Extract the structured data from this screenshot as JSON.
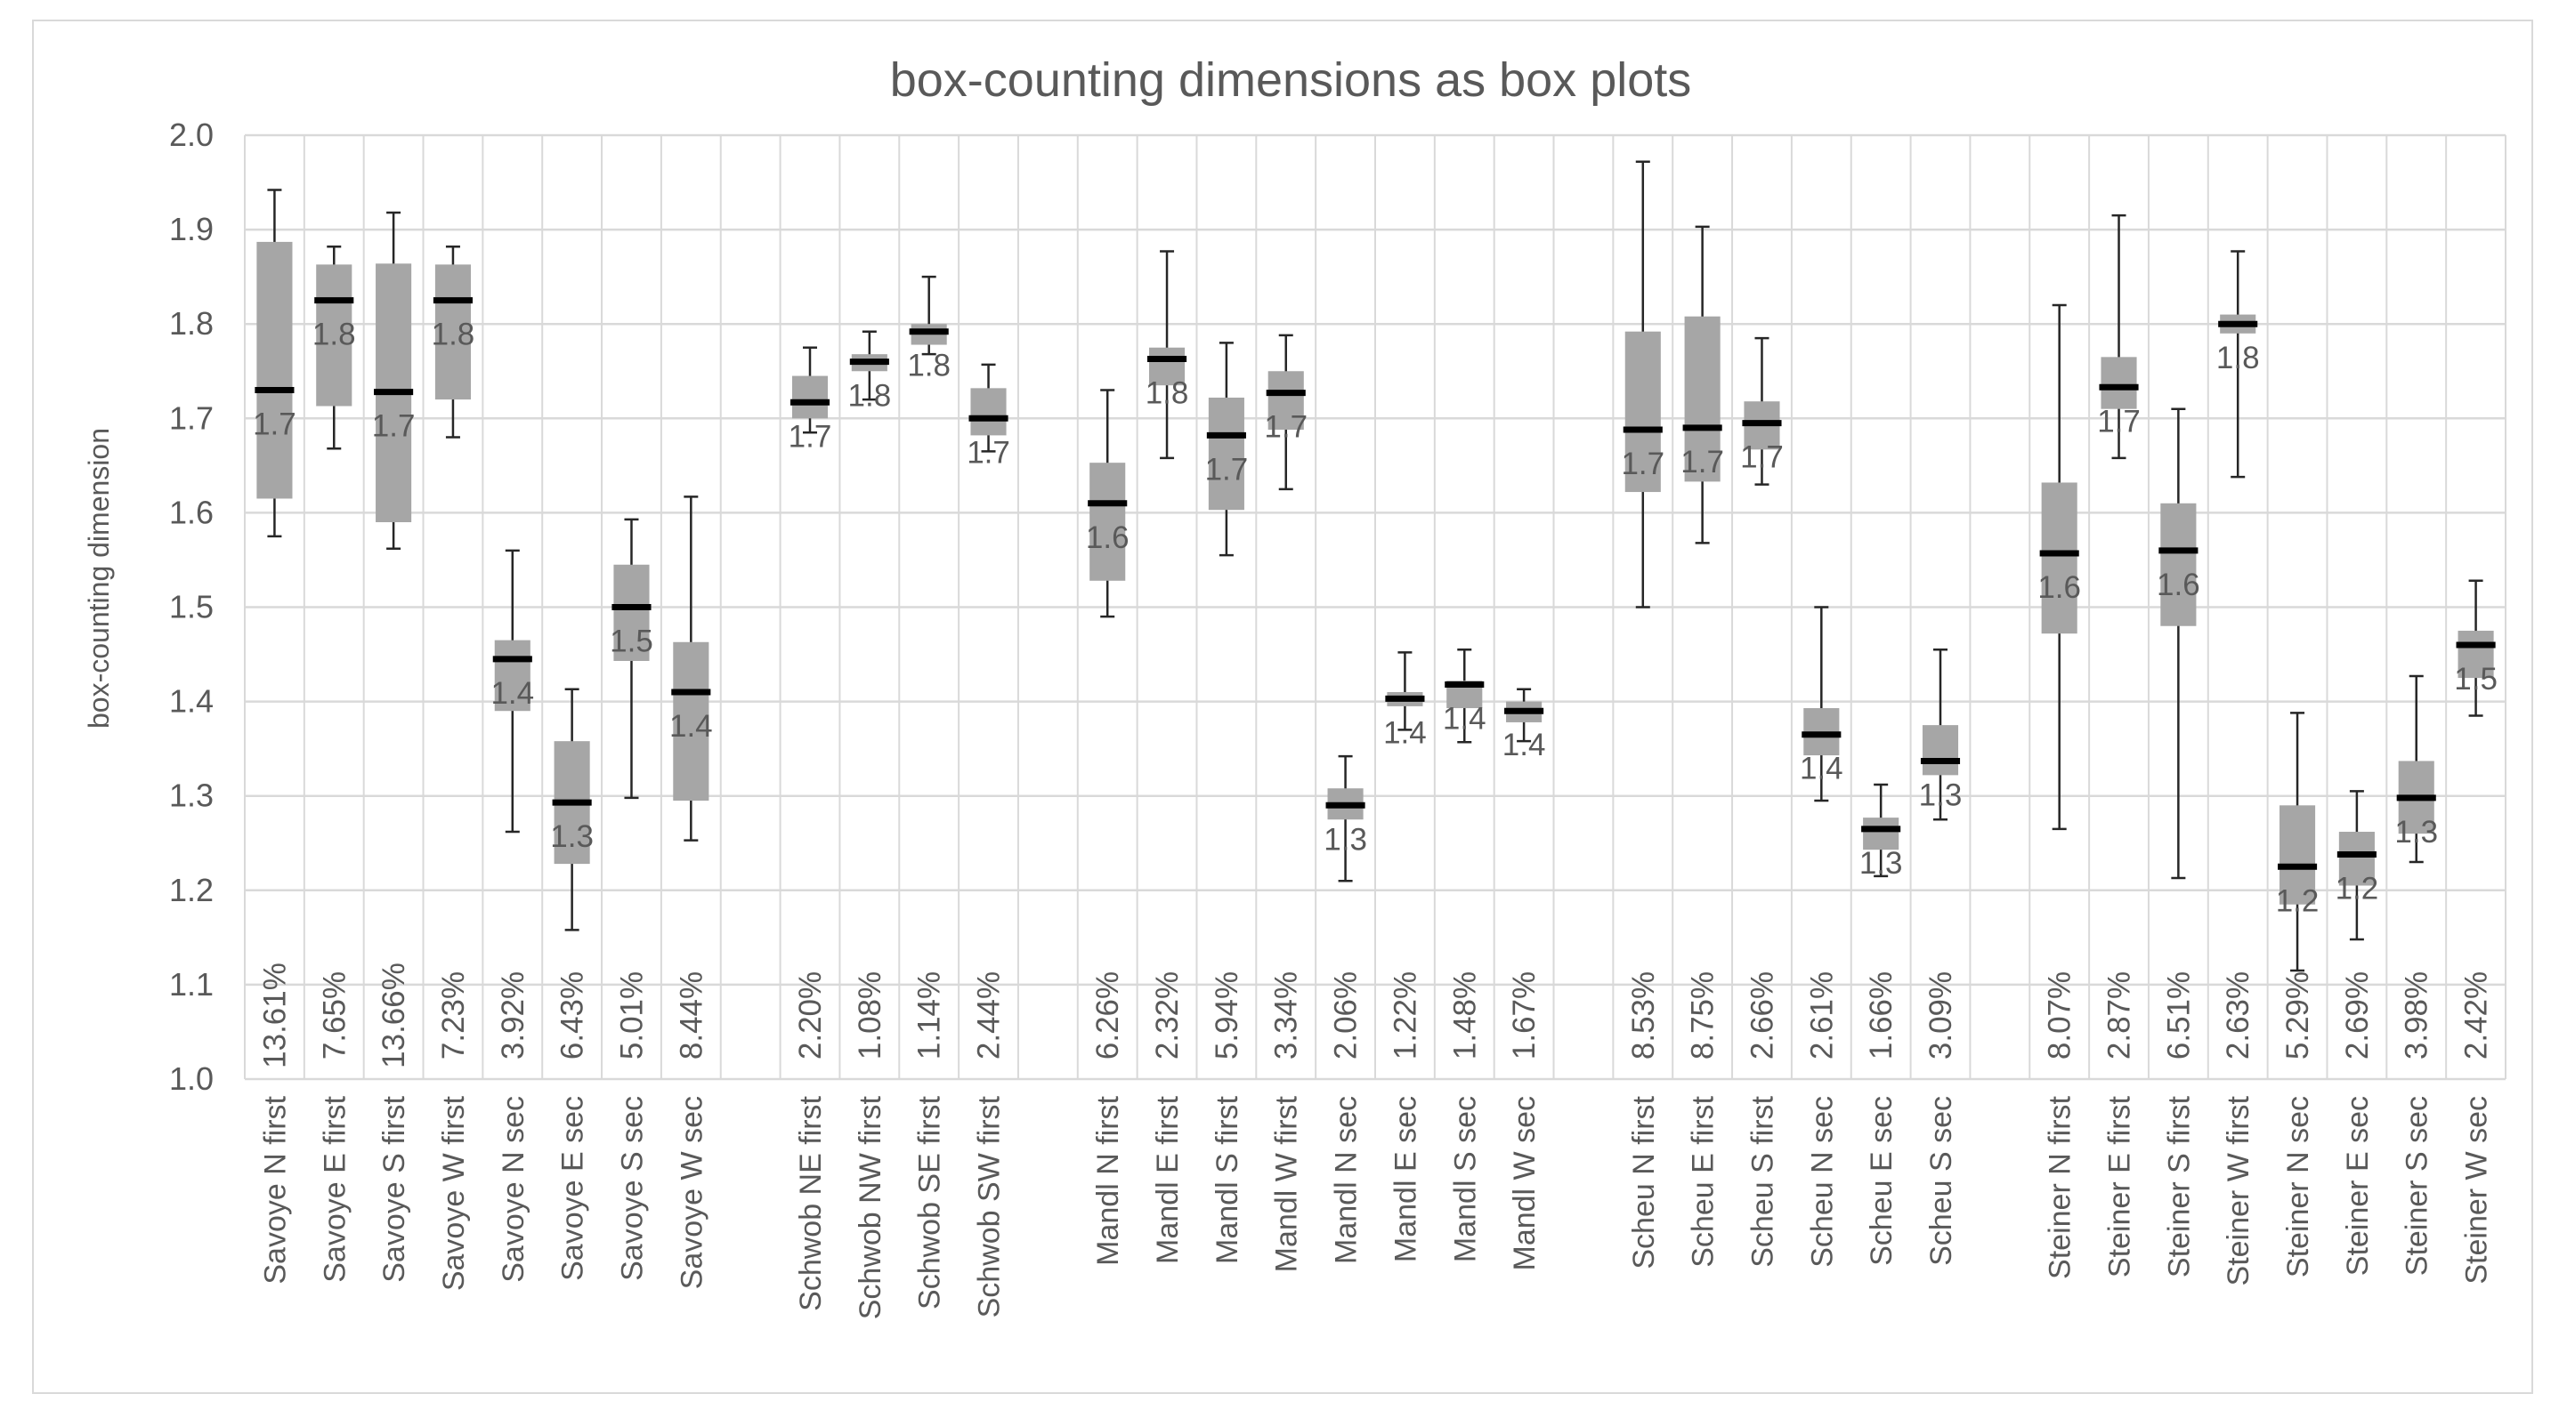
{
  "chart_data": {
    "type": "boxplot",
    "title": "box-counting dimensions as box plots",
    "ylabel": "box-counting dimension",
    "xlabel": "",
    "ylim": [
      1.0,
      2.0
    ],
    "yticks": [
      "1.0",
      "1.1",
      "1.2",
      "1.3",
      "1.4",
      "1.5",
      "1.6",
      "1.7",
      "1.8",
      "1.9",
      "2.0"
    ],
    "grid": true,
    "groups": [
      {
        "name": "Savoye",
        "items": [
          {
            "label": "Savoye N first",
            "pct": "13.61%",
            "median_label": "1.7",
            "min": 1.575,
            "q1": 1.615,
            "median": 1.73,
            "q3": 1.887,
            "max": 1.942
          },
          {
            "label": "Savoye E first",
            "pct": "7.65%",
            "median_label": "1.8",
            "min": 1.668,
            "q1": 1.713,
            "median": 1.825,
            "q3": 1.863,
            "max": 1.882
          },
          {
            "label": "Savoye S first",
            "pct": "13.66%",
            "median_label": "1.7",
            "min": 1.562,
            "q1": 1.59,
            "median": 1.728,
            "q3": 1.864,
            "max": 1.918
          },
          {
            "label": "Savoye W first",
            "pct": "7.23%",
            "median_label": "1.8",
            "min": 1.68,
            "q1": 1.72,
            "median": 1.825,
            "q3": 1.863,
            "max": 1.882
          },
          {
            "label": "Savoye N sec",
            "pct": "3.92%",
            "median_label": "1.4",
            "min": 1.262,
            "q1": 1.39,
            "median": 1.445,
            "q3": 1.465,
            "max": 1.56
          },
          {
            "label": "Savoye E sec",
            "pct": "6.43%",
            "median_label": "1.3",
            "min": 1.158,
            "q1": 1.228,
            "median": 1.293,
            "q3": 1.358,
            "max": 1.413
          },
          {
            "label": "Savoye S sec",
            "pct": "5.01%",
            "median_label": "1.5",
            "min": 1.298,
            "q1": 1.443,
            "median": 1.5,
            "q3": 1.545,
            "max": 1.593
          },
          {
            "label": "Savoye W sec",
            "pct": "8.44%",
            "median_label": "1.4",
            "min": 1.253,
            "q1": 1.295,
            "median": 1.41,
            "q3": 1.463,
            "max": 1.617
          }
        ]
      },
      {
        "name": "Schwob",
        "items": [
          {
            "label": "Schwob NE first",
            "pct": "2.20%",
            "median_label": "1.7",
            "min": 1.685,
            "q1": 1.7,
            "median": 1.717,
            "q3": 1.745,
            "max": 1.775
          },
          {
            "label": "Schwob NW first",
            "pct": "1.08%",
            "median_label": "1.8",
            "min": 1.72,
            "q1": 1.75,
            "median": 1.76,
            "q3": 1.768,
            "max": 1.792
          },
          {
            "label": "Schwob SE first",
            "pct": "1.14%",
            "median_label": "1.8",
            "min": 1.768,
            "q1": 1.778,
            "median": 1.792,
            "q3": 1.8,
            "max": 1.85
          },
          {
            "label": "Schwob SW first",
            "pct": "2.44%",
            "median_label": "1.7",
            "min": 1.665,
            "q1": 1.682,
            "median": 1.7,
            "q3": 1.732,
            "max": 1.757
          }
        ]
      },
      {
        "name": "Mandl",
        "items": [
          {
            "label": "Mandl N first",
            "pct": "6.26%",
            "median_label": "1.6",
            "min": 1.49,
            "q1": 1.528,
            "median": 1.61,
            "q3": 1.653,
            "max": 1.73
          },
          {
            "label": "Mandl E first",
            "pct": "2.32%",
            "median_label": "1.8",
            "min": 1.658,
            "q1": 1.735,
            "median": 1.763,
            "q3": 1.775,
            "max": 1.877
          },
          {
            "label": "Mandl S first",
            "pct": "5.94%",
            "median_label": "1.7",
            "min": 1.555,
            "q1": 1.603,
            "median": 1.682,
            "q3": 1.722,
            "max": 1.78
          },
          {
            "label": "Mandl W first",
            "pct": "3.34%",
            "median_label": "1.7",
            "min": 1.625,
            "q1": 1.688,
            "median": 1.727,
            "q3": 1.75,
            "max": 1.788
          },
          {
            "label": "Mandl N sec",
            "pct": "2.06%",
            "median_label": "1.3",
            "min": 1.21,
            "q1": 1.275,
            "median": 1.29,
            "q3": 1.308,
            "max": 1.342
          },
          {
            "label": "Mandl E sec",
            "pct": "1.22%",
            "median_label": "1.4",
            "min": 1.37,
            "q1": 1.395,
            "median": 1.403,
            "q3": 1.41,
            "max": 1.452
          },
          {
            "label": "Mandl S sec",
            "pct": "1.48%",
            "median_label": "1.4",
            "min": 1.357,
            "q1": 1.393,
            "median": 1.418,
            "q3": 1.422,
            "max": 1.455
          },
          {
            "label": "Mandl W sec",
            "pct": "1.67%",
            "median_label": "1.4",
            "min": 1.358,
            "q1": 1.378,
            "median": 1.39,
            "q3": 1.4,
            "max": 1.413
          }
        ]
      },
      {
        "name": "Scheu",
        "items": [
          {
            "label": "Scheu N first",
            "pct": "8.53%",
            "median_label": "1.7",
            "min": 1.5,
            "q1": 1.622,
            "median": 1.688,
            "q3": 1.792,
            "max": 1.972
          },
          {
            "label": "Scheu E first",
            "pct": "8.75%",
            "median_label": "1.7",
            "min": 1.568,
            "q1": 1.633,
            "median": 1.69,
            "q3": 1.808,
            "max": 1.903
          },
          {
            "label": "Scheu S first",
            "pct": "2.66%",
            "median_label": "1.7",
            "min": 1.63,
            "q1": 1.667,
            "median": 1.695,
            "q3": 1.718,
            "max": 1.785
          },
          {
            "label": "Scheu N sec",
            "pct": "2.61%",
            "median_label": "1.4",
            "min": 1.295,
            "q1": 1.343,
            "median": 1.365,
            "q3": 1.393,
            "max": 1.5
          },
          {
            "label": "Scheu E sec",
            "pct": "1.66%",
            "median_label": "1.3",
            "min": 1.215,
            "q1": 1.243,
            "median": 1.265,
            "q3": 1.277,
            "max": 1.312
          },
          {
            "label": "Scheu S sec",
            "pct": "3.09%",
            "median_label": "1.3",
            "min": 1.275,
            "q1": 1.322,
            "median": 1.337,
            "q3": 1.375,
            "max": 1.455
          }
        ]
      },
      {
        "name": "Steiner",
        "items": [
          {
            "label": "Steiner N first",
            "pct": "8.07%",
            "median_label": "1.6",
            "min": 1.265,
            "q1": 1.472,
            "median": 1.557,
            "q3": 1.632,
            "max": 1.82
          },
          {
            "label": "Steiner E first",
            "pct": "2.87%",
            "median_label": "1.7",
            "min": 1.658,
            "q1": 1.71,
            "median": 1.733,
            "q3": 1.765,
            "max": 1.915
          },
          {
            "label": "Steiner S first",
            "pct": "6.51%",
            "median_label": "1.6",
            "min": 1.213,
            "q1": 1.48,
            "median": 1.56,
            "q3": 1.61,
            "max": 1.71
          },
          {
            "label": "Steiner W first",
            "pct": "2.63%",
            "median_label": "1.8",
            "min": 1.638,
            "q1": 1.79,
            "median": 1.8,
            "q3": 1.81,
            "max": 1.877
          },
          {
            "label": "Steiner N sec",
            "pct": "5.29%",
            "median_label": "1.2",
            "min": 1.115,
            "q1": 1.185,
            "median": 1.225,
            "q3": 1.29,
            "max": 1.388
          },
          {
            "label": "Steiner E sec",
            "pct": "2.69%",
            "median_label": "1.2",
            "min": 1.148,
            "q1": 1.205,
            "median": 1.238,
            "q3": 1.262,
            "max": 1.305
          },
          {
            "label": "Steiner S sec",
            "pct": "3.98%",
            "median_label": "1.3",
            "min": 1.23,
            "q1": 1.26,
            "median": 1.298,
            "q3": 1.337,
            "max": 1.427
          },
          {
            "label": "Steiner W sec",
            "pct": "2.42%",
            "median_label": "1.5",
            "min": 1.385,
            "q1": 1.425,
            "median": 1.46,
            "q3": 1.475,
            "max": 1.528
          }
        ]
      }
    ]
  }
}
